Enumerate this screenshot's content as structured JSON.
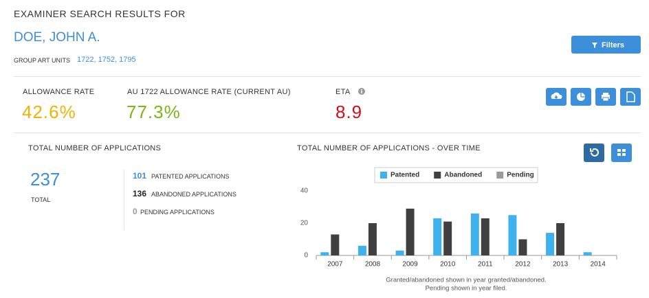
{
  "header": {
    "title": "EXAMINER SEARCH RESULTS FOR",
    "examiner": "DOE, JOHN A.",
    "art_units_label": "GROUP ART UNITS",
    "art_units": "1722, 1752, 1795",
    "filters_button": "Filters"
  },
  "metrics": [
    {
      "label": "ALLOWANCE RATE",
      "value": "42.6%"
    },
    {
      "label": "AU 1722 ALLOWANCE RATE (CURRENT AU)",
      "value": "77.3%"
    },
    {
      "label": "ETA",
      "value": "8.9"
    }
  ],
  "applications": {
    "title": "TOTAL NUMBER OF APPLICATIONS",
    "total": 237,
    "total_label": "TOTAL",
    "breakdown": [
      {
        "count": 101,
        "label": "PATENTED APPLICATIONS"
      },
      {
        "count": 136,
        "label": "ABANDONED APPLICATIONS"
      },
      {
        "count": 0,
        "label": "PENDING APPLICATIONS"
      }
    ]
  },
  "chart_data": {
    "type": "bar",
    "title": "TOTAL NUMBER OF APPLICATIONS - OVER TIME",
    "categories": [
      "2007",
      "2008",
      "2009",
      "2010",
      "2011",
      "2012",
      "2013",
      "2014"
    ],
    "series": [
      {
        "name": "Patented",
        "color": "#3fb1ec",
        "values": [
          2,
          6,
          3,
          23,
          26,
          25,
          14,
          2
        ]
      },
      {
        "name": "Abandoned",
        "color": "#404040",
        "values": [
          13,
          20,
          29,
          21,
          23,
          10,
          20,
          0
        ]
      },
      {
        "name": "Pending",
        "color": "#9a9a9a",
        "values": [
          0,
          0,
          0,
          0,
          0,
          0,
          0,
          0
        ]
      }
    ],
    "ylim": [
      0,
      40
    ],
    "yticks": [
      0,
      20,
      40
    ],
    "grid": false,
    "notes": [
      "Granted/abandoned shown in year granted/abandoned.",
      "Pending shown in year filed."
    ]
  }
}
